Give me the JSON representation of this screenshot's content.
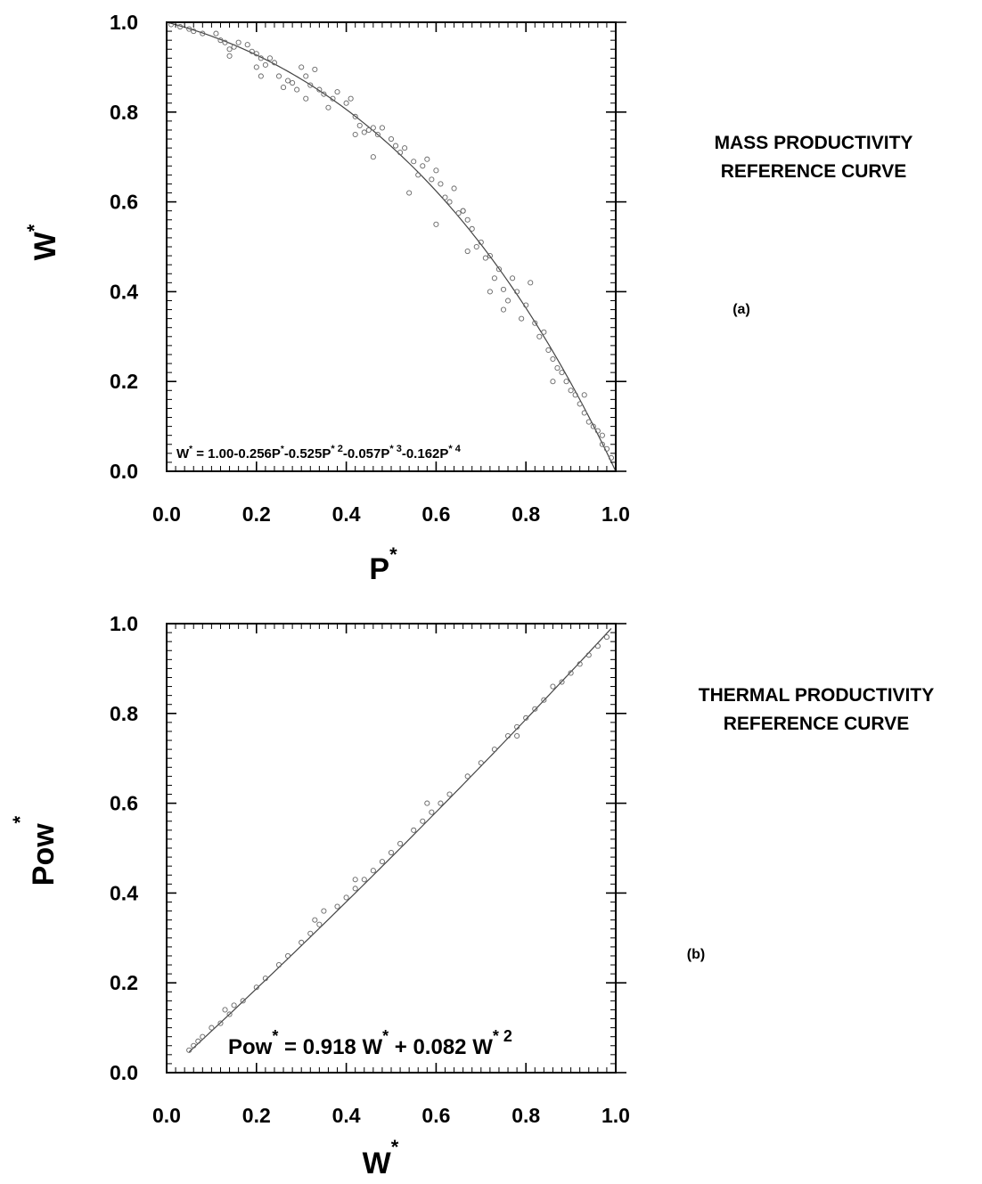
{
  "chart_data": [
    {
      "type": "scatter",
      "panel_label": "(a)",
      "side_title": [
        "MASS PRODUCTIVITY",
        "REFERENCE CURVE"
      ],
      "xlabel": {
        "base": "P",
        "sup": "*"
      },
      "ylabel": {
        "base": "W",
        "sup": "*"
      },
      "xlim": [
        0.0,
        1.0
      ],
      "ylim": [
        0.0,
        1.0
      ],
      "xticks": [
        "0.0",
        "0.2",
        "0.4",
        "0.6",
        "0.8",
        "1.0"
      ],
      "yticks": [
        "0.0",
        "0.2",
        "0.4",
        "0.6",
        "0.8",
        "1.0"
      ],
      "grid": false,
      "equation": {
        "text": "W* = 1.00-0.256P*-0.525P*2-0.057P*3-0.162P*4",
        "coefficients": [
          1.0,
          -0.256,
          -0.525,
          -0.057,
          -0.162
        ]
      },
      "points": [
        [
          0.01,
          0.995
        ],
        [
          0.03,
          0.99
        ],
        [
          0.05,
          0.985
        ],
        [
          0.06,
          0.98
        ],
        [
          0.08,
          0.975
        ],
        [
          0.11,
          0.975
        ],
        [
          0.12,
          0.96
        ],
        [
          0.13,
          0.955
        ],
        [
          0.14,
          0.94
        ],
        [
          0.14,
          0.925
        ],
        [
          0.15,
          0.945
        ],
        [
          0.16,
          0.955
        ],
        [
          0.18,
          0.95
        ],
        [
          0.19,
          0.935
        ],
        [
          0.2,
          0.93
        ],
        [
          0.21,
          0.92
        ],
        [
          0.22,
          0.905
        ],
        [
          0.23,
          0.92
        ],
        [
          0.24,
          0.91
        ],
        [
          0.25,
          0.88
        ],
        [
          0.26,
          0.855
        ],
        [
          0.27,
          0.87
        ],
        [
          0.28,
          0.865
        ],
        [
          0.29,
          0.85
        ],
        [
          0.3,
          0.9
        ],
        [
          0.31,
          0.88
        ],
        [
          0.32,
          0.86
        ],
        [
          0.33,
          0.895
        ],
        [
          0.34,
          0.85
        ],
        [
          0.35,
          0.84
        ],
        [
          0.37,
          0.83
        ],
        [
          0.38,
          0.845
        ],
        [
          0.4,
          0.82
        ],
        [
          0.41,
          0.83
        ],
        [
          0.42,
          0.79
        ],
        [
          0.43,
          0.77
        ],
        [
          0.44,
          0.755
        ],
        [
          0.45,
          0.76
        ],
        [
          0.46,
          0.765
        ],
        [
          0.47,
          0.75
        ],
        [
          0.48,
          0.765
        ],
        [
          0.5,
          0.74
        ],
        [
          0.51,
          0.725
        ],
        [
          0.52,
          0.71
        ],
        [
          0.53,
          0.72
        ],
        [
          0.55,
          0.69
        ],
        [
          0.56,
          0.66
        ],
        [
          0.57,
          0.68
        ],
        [
          0.58,
          0.695
        ],
        [
          0.59,
          0.65
        ],
        [
          0.6,
          0.67
        ],
        [
          0.61,
          0.64
        ],
        [
          0.62,
          0.61
        ],
        [
          0.63,
          0.6
        ],
        [
          0.64,
          0.63
        ],
        [
          0.65,
          0.575
        ],
        [
          0.66,
          0.58
        ],
        [
          0.67,
          0.56
        ],
        [
          0.68,
          0.54
        ],
        [
          0.69,
          0.5
        ],
        [
          0.7,
          0.51
        ],
        [
          0.71,
          0.475
        ],
        [
          0.72,
          0.48
        ],
        [
          0.73,
          0.43
        ],
        [
          0.74,
          0.45
        ],
        [
          0.75,
          0.405
        ],
        [
          0.76,
          0.38
        ],
        [
          0.77,
          0.43
        ],
        [
          0.78,
          0.4
        ],
        [
          0.79,
          0.34
        ],
        [
          0.8,
          0.37
        ],
        [
          0.81,
          0.42
        ],
        [
          0.82,
          0.33
        ],
        [
          0.83,
          0.3
        ],
        [
          0.84,
          0.31
        ],
        [
          0.85,
          0.27
        ],
        [
          0.86,
          0.25
        ],
        [
          0.87,
          0.23
        ],
        [
          0.88,
          0.22
        ],
        [
          0.89,
          0.2
        ],
        [
          0.9,
          0.18
        ],
        [
          0.91,
          0.17
        ],
        [
          0.92,
          0.15
        ],
        [
          0.93,
          0.13
        ],
        [
          0.94,
          0.11
        ],
        [
          0.95,
          0.1
        ],
        [
          0.96,
          0.09
        ],
        [
          0.97,
          0.06
        ],
        [
          0.98,
          0.05
        ],
        [
          0.99,
          0.03
        ],
        [
          0.36,
          0.81
        ],
        [
          0.46,
          0.7
        ],
        [
          0.54,
          0.62
        ],
        [
          0.6,
          0.55
        ],
        [
          0.67,
          0.49
        ],
        [
          0.72,
          0.4
        ],
        [
          0.75,
          0.36
        ],
        [
          0.66,
          0.58
        ],
        [
          0.21,
          0.88
        ],
        [
          0.31,
          0.83
        ],
        [
          0.42,
          0.75
        ],
        [
          0.86,
          0.2
        ],
        [
          0.93,
          0.17
        ],
        [
          0.97,
          0.08
        ],
        [
          0.2,
          0.9
        ]
      ]
    },
    {
      "type": "scatter",
      "panel_label": "(b)",
      "side_title": [
        "THERMAL PRODUCTIVITY",
        "REFERENCE CURVE"
      ],
      "xlabel": {
        "base": "W",
        "sup": "*"
      },
      "ylabel": {
        "base": "Pow",
        "sup": "*"
      },
      "xlim": [
        0.0,
        1.0
      ],
      "ylim": [
        0.0,
        1.0
      ],
      "xticks": [
        "0.0",
        "0.2",
        "0.4",
        "0.6",
        "0.8",
        "1.0"
      ],
      "yticks": [
        "0.0",
        "0.2",
        "0.4",
        "0.6",
        "0.8",
        "1.0"
      ],
      "grid": false,
      "equation": {
        "text": "Pow* = 0.918 W* + 0.082 W*2",
        "coefficients": [
          0.0,
          0.918,
          0.082
        ]
      },
      "points": [
        [
          0.05,
          0.05
        ],
        [
          0.06,
          0.06
        ],
        [
          0.07,
          0.07
        ],
        [
          0.08,
          0.08
        ],
        [
          0.1,
          0.1
        ],
        [
          0.12,
          0.11
        ],
        [
          0.14,
          0.13
        ],
        [
          0.15,
          0.15
        ],
        [
          0.17,
          0.16
        ],
        [
          0.2,
          0.19
        ],
        [
          0.22,
          0.21
        ],
        [
          0.25,
          0.24
        ],
        [
          0.27,
          0.26
        ],
        [
          0.3,
          0.29
        ],
        [
          0.32,
          0.31
        ],
        [
          0.34,
          0.33
        ],
        [
          0.35,
          0.36
        ],
        [
          0.38,
          0.37
        ],
        [
          0.4,
          0.39
        ],
        [
          0.42,
          0.41
        ],
        [
          0.44,
          0.43
        ],
        [
          0.46,
          0.45
        ],
        [
          0.48,
          0.47
        ],
        [
          0.5,
          0.49
        ],
        [
          0.52,
          0.51
        ],
        [
          0.55,
          0.54
        ],
        [
          0.57,
          0.56
        ],
        [
          0.59,
          0.58
        ],
        [
          0.61,
          0.6
        ],
        [
          0.63,
          0.62
        ],
        [
          0.67,
          0.66
        ],
        [
          0.7,
          0.69
        ],
        [
          0.73,
          0.72
        ],
        [
          0.76,
          0.75
        ],
        [
          0.78,
          0.77
        ],
        [
          0.8,
          0.79
        ],
        [
          0.82,
          0.81
        ],
        [
          0.84,
          0.83
        ],
        [
          0.86,
          0.86
        ],
        [
          0.88,
          0.87
        ],
        [
          0.9,
          0.89
        ],
        [
          0.92,
          0.91
        ],
        [
          0.94,
          0.93
        ],
        [
          0.96,
          0.95
        ],
        [
          0.98,
          0.97
        ],
        [
          0.33,
          0.34
        ],
        [
          0.42,
          0.43
        ],
        [
          0.58,
          0.6
        ],
        [
          0.78,
          0.75
        ],
        [
          0.13,
          0.14
        ]
      ]
    }
  ]
}
